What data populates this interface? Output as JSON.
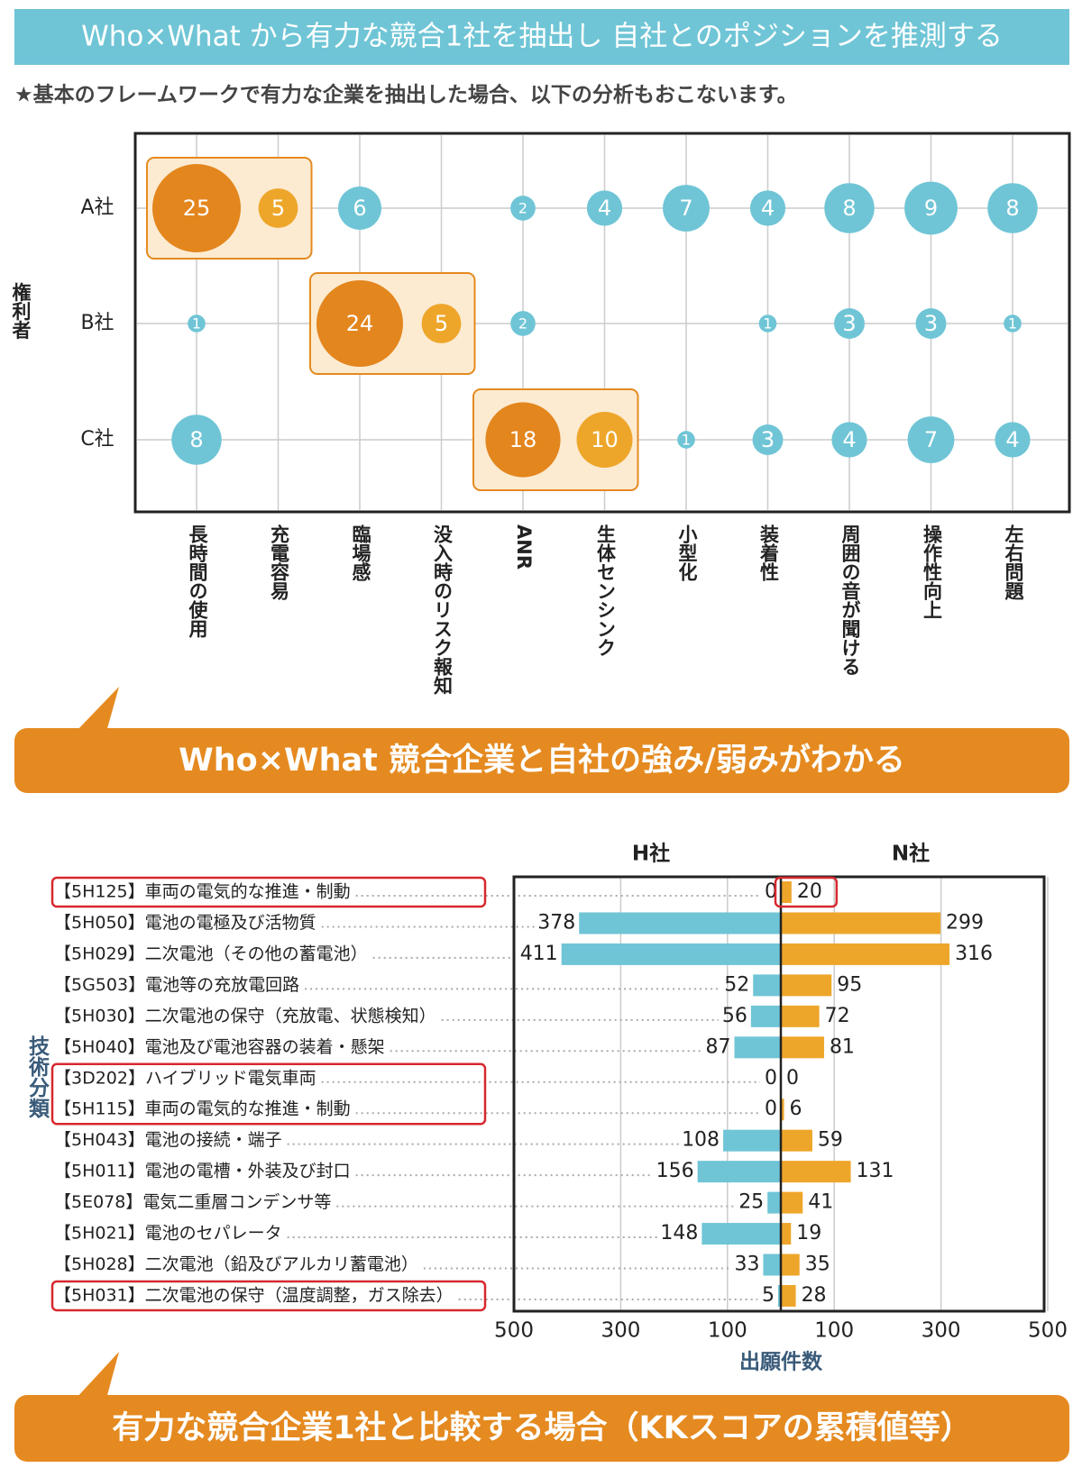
{
  "header": {
    "title": "Who×What から有力な競合1社を抽出し 自社とのポジションを推測する",
    "note": "★基本のフレームワークで有力な企業を抽出した場合、以下の分析もおこないます。"
  },
  "banners": [
    "Who×What 競合企業と自社の強み/弱みがわかる",
    "有力な競合企業1社と比較する場合（KKスコアの累積値等）"
  ],
  "chart_data": [
    {
      "type": "bubble_matrix",
      "ylabel": "権利者",
      "categories": [
        "長時間の使用",
        "充電容易",
        "臨場感",
        "没入時のリスク報知",
        "ANR",
        "生体センシンク",
        "小型化",
        "装着性",
        "周囲の音が聞ける",
        "操作性向上",
        "左右問題"
      ],
      "series": [
        {
          "name": "A社",
          "values": [
            25,
            5,
            6,
            null,
            2,
            4,
            7,
            4,
            8,
            9,
            8
          ],
          "highlight": [
            0,
            1
          ]
        },
        {
          "name": "B社",
          "values": [
            1,
            null,
            24,
            5,
            2,
            null,
            null,
            1,
            3,
            3,
            1
          ],
          "highlight": [
            2,
            3
          ]
        },
        {
          "name": "C社",
          "values": [
            8,
            null,
            null,
            null,
            18,
            10,
            1,
            3,
            4,
            7,
            4
          ],
          "highlight": [
            4,
            5
          ]
        }
      ],
      "color": "#6fc5d6",
      "highlight_colors": [
        "#e3861e",
        "#eea62a"
      ],
      "grid": true
    },
    {
      "type": "butterfly_bar",
      "xlabel": "出願件数",
      "ylabel": "技術分類",
      "categories": [
        "【5H125】車両の電気的な推進・制動",
        "【5H050】電池の電極及び活物質",
        "【5H029】二次電池（その他の蓄電池）",
        "【5G503】電池等の充放電回路",
        "【5H030】二次電池の保守（充放電、状態検知）",
        "【5H040】電池及び電池容器の装着・懸架",
        "【3D202】ハイブリッド電気車両",
        "【5H115】車両の電気的な推進・制動",
        "【5H043】電池の接続・端子",
        "【5H011】電池の電槽・外装及び封口",
        "【5E078】電気二重層コンデンサ等",
        "【5H021】電池のセパレータ",
        "【5H028】二次電池（鉛及びアルカリ蓄電池）",
        "【5H031】二次電池の保守（温度調整，ガス除去）"
      ],
      "series": [
        {
          "name": "H社",
          "color": "#6fc5d6",
          "values": [
            0,
            378,
            411,
            52,
            56,
            87,
            0,
            0,
            108,
            156,
            25,
            148,
            33,
            5
          ]
        },
        {
          "name": "N社",
          "color": "#eea62a",
          "values": [
            20,
            299,
            316,
            95,
            72,
            81,
            0,
            6,
            59,
            131,
            41,
            19,
            35,
            28
          ]
        }
      ],
      "highlight": [
        0,
        6,
        7,
        13
      ],
      "xlim": [
        0,
        500
      ],
      "xticks": [
        100,
        300,
        500
      ],
      "grid": true
    }
  ]
}
